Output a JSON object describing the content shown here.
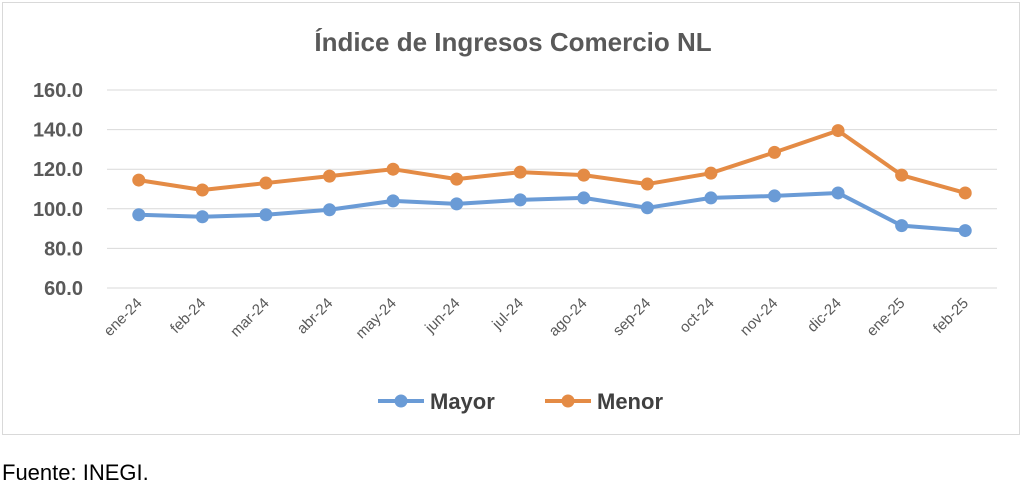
{
  "chart_data": {
    "type": "line",
    "title": "Índice de Ingresos Comercio NL",
    "xlabel": "",
    "ylabel": "",
    "ylim": [
      60,
      160
    ],
    "yticks": [
      "60.0",
      "80.0",
      "100.0",
      "120.0",
      "140.0",
      "160.0"
    ],
    "ytick_values": [
      60,
      80,
      100,
      120,
      140,
      160
    ],
    "grid": true,
    "legend_position": "bottom",
    "categories": [
      "ene-24",
      "feb-24",
      "mar-24",
      "abr-24",
      "may-24",
      "jun-24",
      "jul-24",
      "ago-24",
      "sep-24",
      "oct-24",
      "nov-24",
      "dic-24",
      "ene-25",
      "feb-25"
    ],
    "series": [
      {
        "name": "Mayor",
        "color": "#6a9bd6",
        "values": [
          97.0,
          96.0,
          97.0,
          99.5,
          104.0,
          102.5,
          104.5,
          105.5,
          100.5,
          105.5,
          106.5,
          108.0,
          91.5,
          89.0
        ]
      },
      {
        "name": "Menor",
        "color": "#e48b45",
        "values": [
          114.5,
          109.5,
          113.0,
          116.5,
          120.0,
          115.0,
          118.5,
          117.0,
          112.5,
          118.0,
          128.5,
          139.5,
          117.0,
          108.0
        ]
      }
    ]
  },
  "source_note": "Fuente: INEGI."
}
